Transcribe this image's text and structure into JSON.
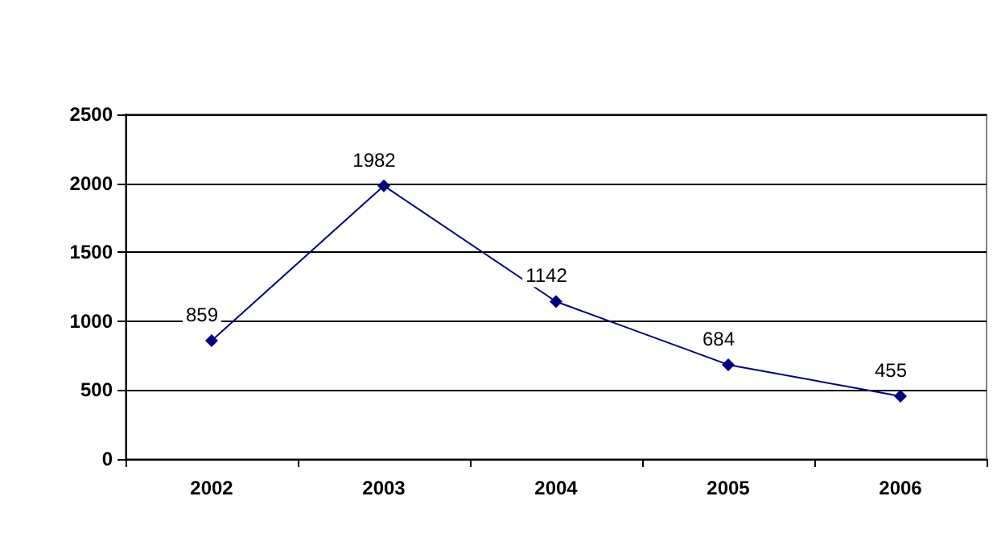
{
  "chart_data": {
    "type": "line",
    "categories": [
      "2002",
      "2003",
      "2004",
      "2005",
      "2006"
    ],
    "series": [
      {
        "color": "#000080",
        "values": [
          859,
          1982,
          1142,
          684,
          455
        ]
      }
    ],
    "ylim": [
      0,
      2500
    ],
    "yticks": [
      0,
      500,
      1000,
      1500,
      2000,
      2500
    ],
    "grid": "y",
    "marker": "diamond",
    "line_style": "solid",
    "data_labels": true
  }
}
